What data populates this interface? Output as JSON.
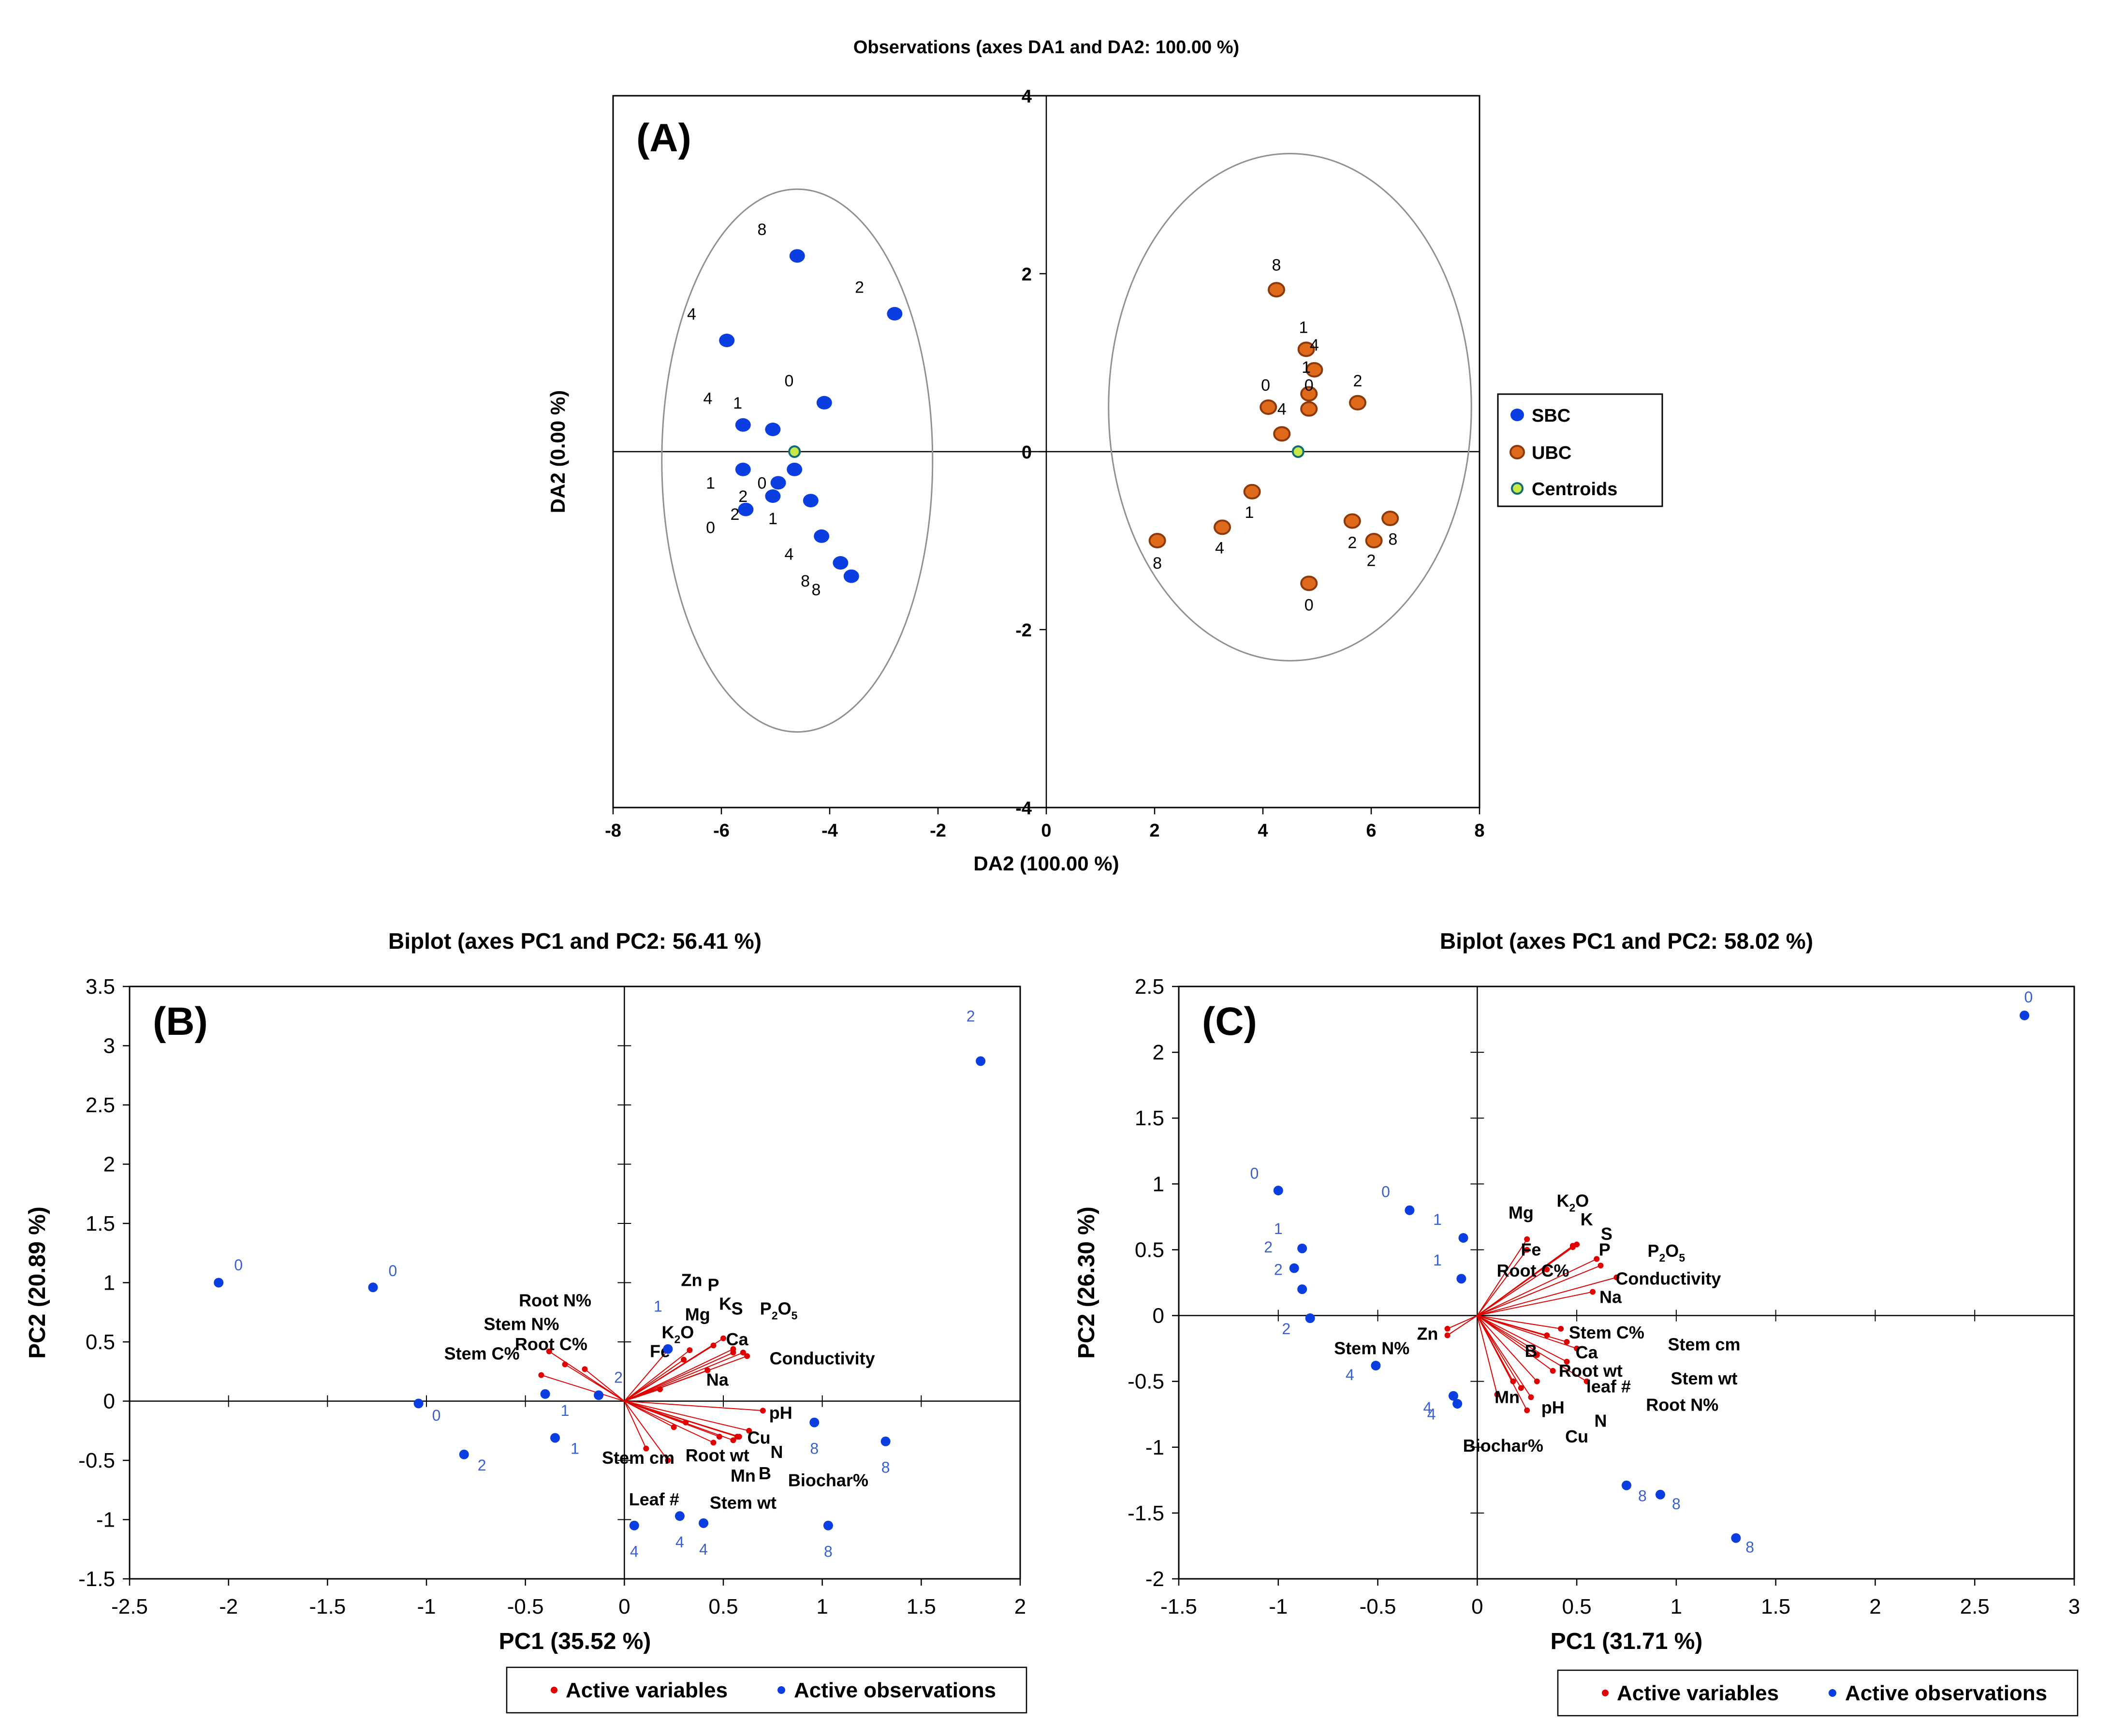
{
  "chart_data": [
    {
      "type": "scatter",
      "panel_label": "(A)",
      "title": "Observations (axes DA1 and DA2: 100.00 %)",
      "xlabel": "DA2 (100.00 %)",
      "ylabel": "DA2 (0.00 %)",
      "xlim": [
        -8,
        8
      ],
      "ylim": [
        -4,
        4
      ],
      "xticks": [
        -8,
        -6,
        -4,
        -2,
        0,
        2,
        4,
        6,
        8
      ],
      "yticks": [
        -4,
        -2,
        0,
        2,
        4
      ],
      "legend": [
        "SBC",
        "UBC",
        "Centroids"
      ],
      "colors": {
        "SBC": "#0a3ee0",
        "UBC": "#e06a1c",
        "UBC_edge": "#8c3a0c",
        "centroid_fill": "#c8e84a",
        "centroid_edge": "#0f6d7a",
        "ellipse": "#909090"
      },
      "ellipses": [
        {
          "group": "SBC",
          "cx": -4.6,
          "cy": -0.1,
          "rx": 2.5,
          "ry": 3.05
        },
        {
          "group": "UBC",
          "cx": 4.5,
          "cy": 0.5,
          "rx": 3.35,
          "ry": 2.85
        }
      ],
      "centroids": [
        {
          "x": -4.65,
          "y": 0
        },
        {
          "x": 4.65,
          "y": 0
        }
      ],
      "series": [
        {
          "name": "SBC",
          "points": [
            {
              "x": -4.6,
              "y": 2.2
            },
            {
              "x": -2.8,
              "y": 1.55
            },
            {
              "x": -5.9,
              "y": 1.25
            },
            {
              "x": -4.1,
              "y": 0.55
            },
            {
              "x": -5.6,
              "y": 0.3
            },
            {
              "x": -5.05,
              "y": 0.25
            },
            {
              "x": -5.6,
              "y": -0.2
            },
            {
              "x": -4.65,
              "y": -0.2
            },
            {
              "x": -4.95,
              "y": -0.35
            },
            {
              "x": -5.05,
              "y": -0.5
            },
            {
              "x": -4.35,
              "y": -0.55
            },
            {
              "x": -5.55,
              "y": -0.65
            },
            {
              "x": -4.15,
              "y": -0.95
            },
            {
              "x": -3.8,
              "y": -1.25
            },
            {
              "x": -3.6,
              "y": -1.4
            }
          ]
        },
        {
          "name": "UBC",
          "points": [
            {
              "x": 4.25,
              "y": 1.82
            },
            {
              "x": 4.8,
              "y": 1.15
            },
            {
              "x": 4.95,
              "y": 0.92
            },
            {
              "x": 4.85,
              "y": 0.65
            },
            {
              "x": 5.75,
              "y": 0.55
            },
            {
              "x": 4.1,
              "y": 0.5
            },
            {
              "x": 4.85,
              "y": 0.48
            },
            {
              "x": 4.35,
              "y": 0.2
            },
            {
              "x": 3.8,
              "y": -0.45
            },
            {
              "x": 3.25,
              "y": -0.85
            },
            {
              "x": 2.05,
              "y": -1.0
            },
            {
              "x": 5.65,
              "y": -0.78
            },
            {
              "x": 6.35,
              "y": -0.75
            },
            {
              "x": 6.05,
              "y": -1.0
            },
            {
              "x": 4.85,
              "y": -1.48
            }
          ]
        }
      ],
      "point_labels": [
        {
          "text": "8",
          "x": -5.25,
          "y": 2.5
        },
        {
          "text": "2",
          "x": -3.45,
          "y": 1.85
        },
        {
          "text": "4",
          "x": -6.55,
          "y": 1.55
        },
        {
          "text": "0",
          "x": -4.75,
          "y": 0.8
        },
        {
          "text": "4",
          "x": -6.25,
          "y": 0.6
        },
        {
          "text": "1",
          "x": -5.7,
          "y": 0.55
        },
        {
          "text": "1",
          "x": -6.2,
          "y": -0.35
        },
        {
          "text": "0",
          "x": -5.25,
          "y": -0.35
        },
        {
          "text": "2",
          "x": -5.6,
          "y": -0.5
        },
        {
          "text": "2",
          "x": -5.75,
          "y": -0.7
        },
        {
          "text": "1",
          "x": -5.05,
          "y": -0.75
        },
        {
          "text": "0",
          "x": -6.2,
          "y": -0.85
        },
        {
          "text": "4",
          "x": -4.75,
          "y": -1.15
        },
        {
          "text": "8",
          "x": -4.45,
          "y": -1.45
        },
        {
          "text": "8",
          "x": -4.25,
          "y": -1.55
        },
        {
          "text": "8",
          "x": 4.25,
          "y": 2.1
        },
        {
          "text": "1",
          "x": 4.75,
          "y": 1.4
        },
        {
          "text": "4",
          "x": 4.95,
          "y": 1.2
        },
        {
          "text": "1",
          "x": 4.8,
          "y": 0.95
        },
        {
          "text": "0",
          "x": 4.85,
          "y": 0.75
        },
        {
          "text": "0",
          "x": 4.05,
          "y": 0.75
        },
        {
          "text": "2",
          "x": 5.75,
          "y": 0.8
        },
        {
          "text": "4",
          "x": 4.35,
          "y": 0.48
        },
        {
          "text": "1",
          "x": 3.75,
          "y": -0.68
        },
        {
          "text": "4",
          "x": 3.2,
          "y": -1.08
        },
        {
          "text": "8",
          "x": 2.05,
          "y": -1.25
        },
        {
          "text": "2",
          "x": 5.65,
          "y": -1.02
        },
        {
          "text": "8",
          "x": 6.4,
          "y": -0.98
        },
        {
          "text": "2",
          "x": 6.0,
          "y": -1.22
        },
        {
          "text": "0",
          "x": 4.85,
          "y": -1.72
        }
      ]
    },
    {
      "type": "biplot",
      "panel_label": "(B)",
      "title": "Biplot (axes PC1 and PC2: 56.41 %)",
      "xlabel": "PC1 (35.52 %)",
      "ylabel": "PC2 (20.89 %)",
      "xlim": [
        -2.5,
        2
      ],
      "ylim": [
        -1.5,
        3.5
      ],
      "xticks": [
        "-2.5",
        "-2",
        "-1.5",
        "-1",
        "-0.5",
        "0",
        "0.5",
        "1",
        "1.5",
        "2"
      ],
      "yticks": [
        "-1.5",
        "-1",
        "-0.5",
        "0",
        "0.5",
        "1",
        "1.5",
        "2",
        "2.5",
        "3",
        "3.5"
      ],
      "legend": [
        "Active variables",
        "Active observations"
      ],
      "colors": {
        "variables": "#e00000",
        "observations": "#0a3ee0",
        "obs_label": "#3a5fd0"
      },
      "observations": [
        {
          "x": 1.8,
          "y": 2.87,
          "label": "2",
          "lx": 1.75,
          "ly": 3.25
        },
        {
          "x": -2.05,
          "y": 1.0,
          "label": "0",
          "lx": -1.95,
          "ly": 1.15
        },
        {
          "x": -1.27,
          "y": 0.96,
          "label": "0",
          "lx": -1.17,
          "ly": 1.1
        },
        {
          "x": -0.13,
          "y": 0.05,
          "label": "2",
          "lx": -0.03,
          "ly": 0.2
        },
        {
          "x": -0.4,
          "y": 0.06,
          "label": "1",
          "lx": -0.3,
          "ly": -0.08
        },
        {
          "x": -1.04,
          "y": -0.02,
          "label": "0",
          "lx": -0.95,
          "ly": -0.12
        },
        {
          "x": -0.35,
          "y": -0.31,
          "label": "1",
          "lx": -0.25,
          "ly": -0.4
        },
        {
          "x": -0.81,
          "y": -0.45,
          "label": "2",
          "lx": -0.72,
          "ly": -0.54
        },
        {
          "x": 0.96,
          "y": -0.18,
          "label": "8",
          "lx": 0.96,
          "ly": -0.4
        },
        {
          "x": 1.32,
          "y": -0.34,
          "label": "8",
          "lx": 1.32,
          "ly": -0.56
        },
        {
          "x": 0.05,
          "y": -1.05,
          "label": "4",
          "lx": 0.05,
          "ly": -1.27
        },
        {
          "x": 0.28,
          "y": -0.97,
          "label": "4",
          "lx": 0.28,
          "ly": -1.19
        },
        {
          "x": 0.4,
          "y": -1.03,
          "label": "4",
          "lx": 0.4,
          "ly": -1.25
        },
        {
          "x": 1.03,
          "y": -1.05,
          "label": "8",
          "lx": 1.03,
          "ly": -1.27
        },
        {
          "x": 0.22,
          "y": 0.44,
          "label": "1",
          "lx": 0.17,
          "ly": 0.8
        }
      ],
      "variables": [
        {
          "name": "Root N%",
          "x": -0.38,
          "y": 0.42,
          "lx": -0.35,
          "ly": 0.85
        },
        {
          "name": "Stem N%",
          "x": -0.3,
          "y": 0.31,
          "lx": -0.52,
          "ly": 0.65
        },
        {
          "name": "Root C%",
          "x": -0.2,
          "y": 0.27,
          "lx": -0.37,
          "ly": 0.48
        },
        {
          "name": "Stem C%",
          "x": -0.42,
          "y": 0.22,
          "lx": -0.72,
          "ly": 0.4
        },
        {
          "name": "Zn",
          "x": 0.33,
          "y": 0.43,
          "lx": 0.34,
          "ly": 1.02
        },
        {
          "name": "P",
          "x": 0.45,
          "y": 0.47,
          "lx": 0.45,
          "ly": 0.98
        },
        {
          "name": "Mg",
          "x": 0.22,
          "y": 0.43,
          "lx": 0.37,
          "ly": 0.73
        },
        {
          "name": "K",
          "x": 0.5,
          "y": 0.53,
          "lx": 0.51,
          "ly": 0.82
        },
        {
          "name": "S",
          "x": 0.55,
          "y": 0.44,
          "lx": 0.57,
          "ly": 0.78
        },
        {
          "name": "P2O5",
          "x": 0.6,
          "y": 0.41,
          "lx": 0.78,
          "ly": 0.78
        },
        {
          "name": "K2O",
          "x": 0.3,
          "y": 0.35,
          "lx": 0.27,
          "ly": 0.58
        },
        {
          "name": "Ca",
          "x": 0.55,
          "y": 0.41,
          "lx": 0.57,
          "ly": 0.52
        },
        {
          "name": "Fe",
          "x": 0.18,
          "y": 0.1,
          "lx": 0.18,
          "ly": 0.42
        },
        {
          "name": "Conductivity",
          "x": 0.62,
          "y": 0.38,
          "lx": 1.0,
          "ly": 0.36
        },
        {
          "name": "Na",
          "x": 0.42,
          "y": 0.26,
          "lx": 0.47,
          "ly": 0.18
        },
        {
          "name": "pH",
          "x": 0.7,
          "y": -0.08,
          "lx": 0.79,
          "ly": -0.1
        },
        {
          "name": "Cu",
          "x": 0.63,
          "y": -0.25,
          "lx": 0.68,
          "ly": -0.31
        },
        {
          "name": "N",
          "x": 0.57,
          "y": -0.3,
          "lx": 0.77,
          "ly": -0.43
        },
        {
          "name": "Root wt",
          "x": 0.45,
          "y": -0.35,
          "lx": 0.47,
          "ly": -0.46
        },
        {
          "name": "Mn",
          "x": 0.55,
          "y": -0.33,
          "lx": 0.6,
          "ly": -0.63
        },
        {
          "name": "B",
          "x": 0.58,
          "y": -0.3,
          "lx": 0.71,
          "ly": -0.61
        },
        {
          "name": "Biochar%",
          "x": 0.48,
          "y": -0.3,
          "lx": 1.03,
          "ly": -0.67
        },
        {
          "name": "Stem cm",
          "x": 0.22,
          "y": -0.5,
          "lx": 0.07,
          "ly": -0.48
        },
        {
          "name": "Leaf #",
          "x": 0.11,
          "y": -0.4,
          "lx": 0.15,
          "ly": -0.83
        },
        {
          "name": "Stem wt",
          "x": 0.25,
          "y": -0.22,
          "lx": 0.6,
          "ly": -0.86
        },
        {
          "name": "Stem wt",
          "x": 0.31,
          "y": -0.18,
          "lx": null,
          "ly": null
        }
      ]
    },
    {
      "type": "biplot",
      "panel_label": "(C)",
      "title": "Biplot (axes PC1 and PC2: 58.02 %)",
      "xlabel": "PC1 (31.71 %)",
      "ylabel": "PC2 (26.30 %)",
      "xlim": [
        -1.5,
        3
      ],
      "ylim": [
        -2,
        2.5
      ],
      "xticks": [
        "-1.5",
        "-1",
        "-0.5",
        "0",
        "0.5",
        "1",
        "1.5",
        "2",
        "2.5",
        "3"
      ],
      "yticks": [
        "-2",
        "-1.5",
        "-1",
        "-0.5",
        "0",
        "0.5",
        "1",
        "1.5",
        "2",
        "2.5"
      ],
      "legend": [
        "Active variables",
        "Active observations"
      ],
      "colors": {
        "variables": "#e00000",
        "observations": "#0a3ee0",
        "obs_label": "#3a5fd0"
      },
      "observations": [
        {
          "x": 2.75,
          "y": 2.28,
          "label": "0",
          "lx": 2.77,
          "ly": 2.42
        },
        {
          "x": -1.0,
          "y": 0.95,
          "label": "0",
          "lx": -1.12,
          "ly": 1.08
        },
        {
          "x": -0.88,
          "y": 0.51,
          "label": "1",
          "lx": -1.0,
          "ly": 0.66
        },
        {
          "x": -0.92,
          "y": 0.36,
          "label": "2",
          "lx": -1.05,
          "ly": 0.52
        },
        {
          "x": -0.88,
          "y": 0.2,
          "label": "2",
          "lx": -1.0,
          "ly": 0.35
        },
        {
          "x": -0.84,
          "y": -0.02,
          "label": "2",
          "lx": -0.96,
          "ly": -0.1
        },
        {
          "x": -0.34,
          "y": 0.8,
          "label": "0",
          "lx": -0.46,
          "ly": 0.94
        },
        {
          "x": -0.07,
          "y": 0.59,
          "label": "1",
          "lx": -0.2,
          "ly": 0.73
        },
        {
          "x": -0.08,
          "y": 0.28,
          "label": "1",
          "lx": -0.2,
          "ly": 0.42
        },
        {
          "x": -0.51,
          "y": -0.38,
          "label": "4",
          "lx": -0.64,
          "ly": -0.45
        },
        {
          "x": -0.12,
          "y": -0.61,
          "label": "4",
          "lx": -0.25,
          "ly": -0.7
        },
        {
          "x": -0.1,
          "y": -0.67,
          "label": "4",
          "lx": -0.23,
          "ly": -0.75
        },
        {
          "x": 0.75,
          "y": -1.29,
          "label": "8",
          "lx": 0.83,
          "ly": -1.37
        },
        {
          "x": 0.92,
          "y": -1.36,
          "label": "8",
          "lx": 1.0,
          "ly": -1.43
        },
        {
          "x": 1.3,
          "y": -1.69,
          "label": "8",
          "lx": 1.37,
          "ly": -1.76
        }
      ],
      "variables": [
        {
          "name": "Mg",
          "x": 0.25,
          "y": 0.58,
          "lx": 0.22,
          "ly": 0.78
        },
        {
          "name": "K2O",
          "x": 0.48,
          "y": 0.53,
          "lx": 0.48,
          "ly": 0.87
        },
        {
          "name": "K",
          "x": 0.5,
          "y": 0.54,
          "lx": 0.55,
          "ly": 0.73
        },
        {
          "name": "S",
          "x": 0.6,
          "y": 0.43,
          "lx": 0.65,
          "ly": 0.62
        },
        {
          "name": "P",
          "x": 0.48,
          "y": 0.52,
          "lx": 0.64,
          "ly": 0.5
        },
        {
          "name": "P2O5",
          "x": 0.62,
          "y": 0.38,
          "lx": 0.95,
          "ly": 0.49
        },
        {
          "name": "Fe",
          "x": 0.25,
          "y": 0.5,
          "lx": 0.27,
          "ly": 0.5
        },
        {
          "name": "Root C%",
          "x": 0.35,
          "y": 0.35,
          "lx": 0.28,
          "ly": 0.34
        },
        {
          "name": "Conductivity",
          "x": 0.7,
          "y": 0.29,
          "lx": 0.96,
          "ly": 0.28
        },
        {
          "name": "Na",
          "x": 0.58,
          "y": 0.18,
          "lx": 0.67,
          "ly": 0.14
        },
        {
          "name": "Zn",
          "x": -0.15,
          "y": -0.15,
          "lx": -0.25,
          "ly": -0.14
        },
        {
          "name": "Stem C%",
          "x": 0.35,
          "y": -0.15,
          "lx": 0.65,
          "ly": -0.13
        },
        {
          "name": "Stem cm",
          "x": 0.45,
          "y": -0.2,
          "lx": 1.14,
          "ly": -0.22
        },
        {
          "name": "B",
          "x": 0.3,
          "y": -0.3,
          "lx": 0.27,
          "ly": -0.27
        },
        {
          "name": "Ca",
          "x": 0.5,
          "y": -0.25,
          "lx": 0.55,
          "ly": -0.28
        },
        {
          "name": "Root wt",
          "x": 0.45,
          "y": -0.35,
          "lx": 0.57,
          "ly": -0.42
        },
        {
          "name": "leaf #",
          "x": 0.38,
          "y": -0.42,
          "lx": 0.66,
          "ly": -0.54
        },
        {
          "name": "Stem wt",
          "x": 0.3,
          "y": -0.5,
          "lx": 1.14,
          "ly": -0.48
        },
        {
          "name": "Root N%",
          "x": 0.55,
          "y": -0.5,
          "lx": 1.03,
          "ly": -0.68
        },
        {
          "name": "Mn",
          "x": 0.18,
          "y": -0.5,
          "lx": 0.15,
          "ly": -0.62
        },
        {
          "name": "pH",
          "x": 0.25,
          "y": -0.72,
          "lx": 0.38,
          "ly": -0.7
        },
        {
          "name": "N",
          "x": 0.22,
          "y": -0.55,
          "lx": 0.62,
          "ly": -0.8
        },
        {
          "name": "Cu",
          "x": 0.27,
          "y": -0.62,
          "lx": 0.5,
          "ly": -0.92
        },
        {
          "name": "Stem N%",
          "x": -0.15,
          "y": -0.1,
          "lx": -0.53,
          "ly": -0.25
        },
        {
          "name": "Biochar%",
          "x": 0.1,
          "y": -0.6,
          "lx": 0.13,
          "ly": -0.99
        },
        {
          "name": "Stem C%",
          "x": 0.42,
          "y": -0.1,
          "lx": null,
          "ly": null
        }
      ]
    }
  ]
}
